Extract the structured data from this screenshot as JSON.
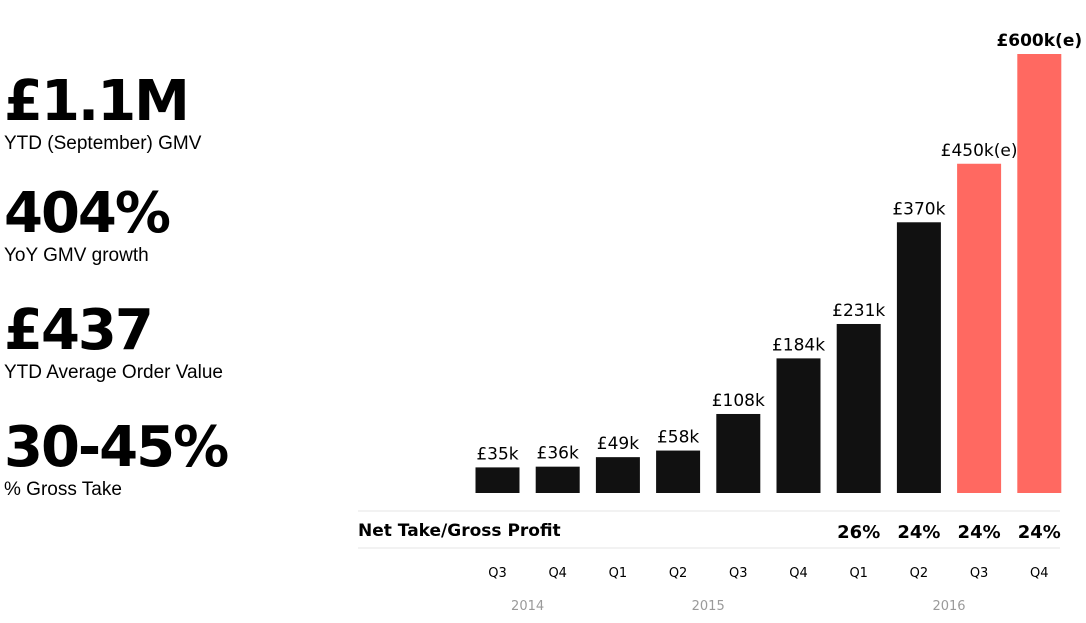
{
  "kpis": [
    {
      "value": "£1.1M",
      "label": "YTD (September) GMV"
    },
    {
      "value": "404%",
      "label": "YoY GMV growth"
    },
    {
      "value": "£437",
      "label": "YTD Average Order Value"
    },
    {
      "value": "30-45%",
      "label": "% Gross Take"
    }
  ],
  "colors": {
    "actual": "#111111",
    "estimate": "#ff6961",
    "divider": "#e6e6e6",
    "year_text": "#9a9a9a"
  },
  "chart_data": {
    "type": "bar",
    "categories": [
      "Q3",
      "Q4",
      "Q1",
      "Q2",
      "Q3",
      "Q4",
      "Q1",
      "Q2",
      "Q3",
      "Q4"
    ],
    "years": [
      {
        "label": "2014",
        "quarters": [
          0,
          1
        ]
      },
      {
        "label": "2015",
        "quarters": [
          2,
          5
        ]
      },
      {
        "label": "2016",
        "quarters": [
          6,
          9
        ]
      }
    ],
    "values": [
      35,
      36,
      49,
      58,
      108,
      184,
      231,
      370,
      450,
      600
    ],
    "value_unit": "£k",
    "estimated": [
      false,
      false,
      false,
      false,
      false,
      false,
      false,
      false,
      true,
      true
    ],
    "data_labels": [
      "£35k",
      "£36k",
      "£49k",
      "£58k",
      "£108k",
      "£184k",
      "£231k",
      "£370k",
      "£450k(e)",
      "£600k(e)"
    ],
    "net_take_title": "Net Take/Gross Profit",
    "net_take": [
      "",
      "",
      "",
      "",
      "",
      "",
      "26%",
      "24%",
      "24%",
      "24%"
    ],
    "ylim": [
      0,
      600
    ],
    "grid": false,
    "legend": "none"
  }
}
